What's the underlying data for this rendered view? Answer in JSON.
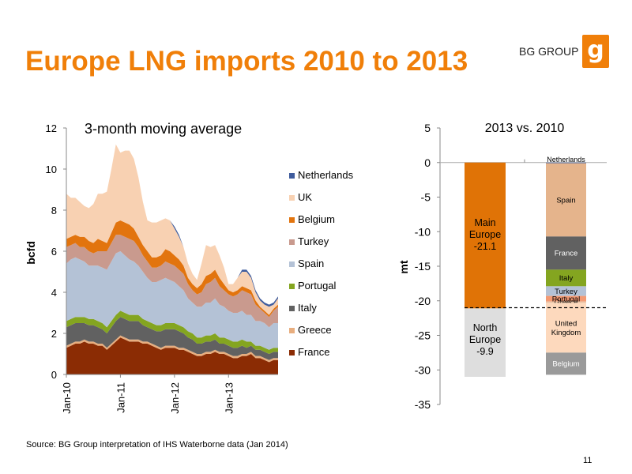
{
  "title": "Europe LNG imports 2010 to 2013",
  "logo": {
    "text": "BG GROUP",
    "mark": "g"
  },
  "source": "Source: BG Group interpretation of IHS Waterborne  data (Jan 2014)",
  "page_number": "11",
  "colors": {
    "accent": "#f07f09",
    "France": "#8b2c04",
    "Greece": "#e8ae7f",
    "Italy": "#616161",
    "Portugal": "#84a520",
    "Spain": "#b4c2d6",
    "Turkey": "#c99a8e",
    "Belgium": "#e2740e",
    "UK": "#f8d1b2",
    "Netherlands": "#3f5c9d",
    "main_europe": "#e07306",
    "north_europe": "#dedede"
  },
  "chart_data": [
    {
      "type": "area",
      "title": "3-month moving average",
      "ylabel": "bcfd",
      "xlabel": "",
      "ylim": [
        0,
        12
      ],
      "yticks": [
        "0",
        "2",
        "4",
        "6",
        "8",
        "10",
        "12"
      ],
      "xticks": [
        "Jan-10",
        "Jan-11",
        "Jan-12",
        "Jan-13"
      ],
      "x": [
        "Jan-10",
        "Feb-10",
        "Mar-10",
        "Apr-10",
        "May-10",
        "Jun-10",
        "Jul-10",
        "Aug-10",
        "Sep-10",
        "Oct-10",
        "Nov-10",
        "Dec-10",
        "Jan-11",
        "Feb-11",
        "Mar-11",
        "Apr-11",
        "May-11",
        "Jun-11",
        "Jul-11",
        "Aug-11",
        "Sep-11",
        "Oct-11",
        "Nov-11",
        "Dec-11",
        "Jan-12",
        "Feb-12",
        "Mar-12",
        "Apr-12",
        "May-12",
        "Jun-12",
        "Jul-12",
        "Aug-12",
        "Sep-12",
        "Oct-12",
        "Nov-12",
        "Dec-12",
        "Jan-13",
        "Feb-13",
        "Mar-13",
        "Apr-13",
        "May-13",
        "Jun-13",
        "Jul-13",
        "Aug-13",
        "Sep-13",
        "Oct-13",
        "Nov-13",
        "Dec-13"
      ],
      "legend_position": "right",
      "series": [
        {
          "name": "France",
          "values": [
            1.3,
            1.4,
            1.5,
            1.5,
            1.6,
            1.5,
            1.5,
            1.4,
            1.4,
            1.2,
            1.4,
            1.6,
            1.8,
            1.7,
            1.6,
            1.6,
            1.6,
            1.5,
            1.5,
            1.4,
            1.3,
            1.2,
            1.3,
            1.3,
            1.3,
            1.2,
            1.2,
            1.1,
            1.0,
            0.9,
            0.9,
            1.0,
            1.0,
            1.1,
            1.0,
            1.0,
            0.9,
            0.8,
            0.8,
            0.9,
            0.9,
            1.0,
            0.8,
            0.8,
            0.7,
            0.6,
            0.7,
            0.7
          ]
        },
        {
          "name": "Greece",
          "values": [
            0.1,
            0.1,
            0.1,
            0.1,
            0.1,
            0.1,
            0.1,
            0.1,
            0.1,
            0.1,
            0.1,
            0.1,
            0.1,
            0.1,
            0.1,
            0.1,
            0.1,
            0.1,
            0.1,
            0.1,
            0.1,
            0.1,
            0.1,
            0.1,
            0.1,
            0.1,
            0.1,
            0.1,
            0.1,
            0.1,
            0.1,
            0.1,
            0.1,
            0.1,
            0.1,
            0.1,
            0.1,
            0.1,
            0.1,
            0.1,
            0.1,
            0.1,
            0.1,
            0.1,
            0.1,
            0.1,
            0.1,
            0.1
          ]
        },
        {
          "name": "Italy",
          "values": [
            0.9,
            0.9,
            0.9,
            0.9,
            0.8,
            0.8,
            0.8,
            0.8,
            0.7,
            0.7,
            0.8,
            0.9,
            0.9,
            0.9,
            0.9,
            0.9,
            0.9,
            0.8,
            0.7,
            0.7,
            0.7,
            0.8,
            0.8,
            0.8,
            0.8,
            0.8,
            0.7,
            0.6,
            0.6,
            0.5,
            0.5,
            0.5,
            0.5,
            0.5,
            0.4,
            0.4,
            0.4,
            0.4,
            0.4,
            0.4,
            0.3,
            0.3,
            0.3,
            0.3,
            0.3,
            0.3,
            0.3,
            0.3
          ]
        },
        {
          "name": "Portugal",
          "values": [
            0.3,
            0.3,
            0.3,
            0.3,
            0.3,
            0.3,
            0.3,
            0.3,
            0.3,
            0.3,
            0.3,
            0.3,
            0.3,
            0.3,
            0.3,
            0.3,
            0.3,
            0.3,
            0.3,
            0.3,
            0.3,
            0.3,
            0.3,
            0.3,
            0.3,
            0.3,
            0.3,
            0.3,
            0.3,
            0.3,
            0.3,
            0.3,
            0.3,
            0.3,
            0.3,
            0.3,
            0.3,
            0.3,
            0.3,
            0.3,
            0.3,
            0.2,
            0.2,
            0.2,
            0.2,
            0.2,
            0.2,
            0.2
          ]
        },
        {
          "name": "Spain",
          "values": [
            2.8,
            2.9,
            2.9,
            2.8,
            2.7,
            2.6,
            2.6,
            2.7,
            2.7,
            2.8,
            2.9,
            3.0,
            2.9,
            2.8,
            2.7,
            2.6,
            2.4,
            2.3,
            2.1,
            2.0,
            2.1,
            2.2,
            2.2,
            2.1,
            2.0,
            1.9,
            1.8,
            1.6,
            1.5,
            1.5,
            1.5,
            1.6,
            1.6,
            1.7,
            1.6,
            1.5,
            1.4,
            1.4,
            1.4,
            1.4,
            1.3,
            1.3,
            1.2,
            1.2,
            1.2,
            1.1,
            1.2,
            1.2
          ]
        },
        {
          "name": "Turkey",
          "values": [
            0.8,
            0.7,
            0.7,
            0.6,
            0.7,
            0.7,
            0.6,
            0.7,
            0.8,
            0.9,
            0.9,
            0.9,
            0.8,
            0.9,
            1.0,
            1.0,
            0.9,
            0.8,
            0.8,
            0.7,
            0.7,
            0.7,
            0.8,
            0.8,
            0.8,
            0.8,
            0.8,
            0.7,
            0.6,
            0.6,
            0.7,
            0.9,
            1.0,
            1.0,
            0.9,
            0.8,
            0.8,
            0.8,
            0.9,
            1.0,
            1.1,
            1.0,
            0.8,
            0.6,
            0.5,
            0.5,
            0.6,
            0.8
          ]
        },
        {
          "name": "Belgium",
          "values": [
            0.4,
            0.4,
            0.4,
            0.5,
            0.5,
            0.5,
            0.5,
            0.6,
            0.5,
            0.4,
            0.5,
            0.6,
            0.7,
            0.7,
            0.7,
            0.6,
            0.5,
            0.5,
            0.5,
            0.5,
            0.5,
            0.5,
            0.6,
            0.6,
            0.5,
            0.5,
            0.4,
            0.3,
            0.3,
            0.3,
            0.4,
            0.4,
            0.4,
            0.4,
            0.4,
            0.3,
            0.2,
            0.2,
            0.2,
            0.2,
            0.2,
            0.2,
            0.2,
            0.1,
            0.1,
            0.1,
            0.1,
            0.1
          ]
        },
        {
          "name": "UK",
          "values": [
            2.2,
            1.9,
            1.8,
            1.7,
            1.5,
            1.6,
            1.9,
            2.2,
            2.3,
            2.5,
            3.1,
            3.8,
            3.3,
            3.5,
            3.6,
            3.4,
            2.9,
            2.1,
            1.5,
            1.7,
            1.7,
            1.7,
            1.5,
            1.5,
            1.3,
            1.1,
            0.9,
            0.7,
            0.5,
            0.4,
            1.0,
            1.5,
            1.3,
            1.2,
            1.1,
            0.8,
            0.3,
            0.4,
            0.6,
            0.7,
            0.8,
            0.6,
            0.4,
            0.3,
            0.3,
            0.4,
            0.2,
            0.3
          ]
        },
        {
          "name": "Netherlands",
          "values": [
            0,
            0,
            0,
            0,
            0,
            0,
            0,
            0,
            0,
            0,
            0,
            0,
            0,
            0,
            0,
            0,
            0,
            0,
            0,
            0,
            0,
            0,
            0,
            0,
            0.1,
            0.1,
            0,
            0,
            0,
            0,
            0,
            0,
            0,
            0,
            0,
            0,
            0,
            0,
            0,
            0.1,
            0.1,
            0.1,
            0.1,
            0.1,
            0.1,
            0.1,
            0.1,
            0.1
          ]
        }
      ]
    },
    {
      "type": "bar",
      "title": "2013 vs. 2010",
      "ylabel": "mt",
      "ylim": [
        -35,
        5
      ],
      "yticks": [
        "5",
        "0",
        "-5",
        "-10",
        "-15",
        "-20",
        "-25",
        "-30",
        "-35"
      ],
      "bars": [
        {
          "label_lines": [
            "Main",
            "Europe",
            "-21.1"
          ],
          "segments": [
            {
              "name": "Main Europe",
              "value": -21.1
            }
          ]
        },
        {
          "label_lines": [
            "North",
            "Europe",
            "-9.9"
          ],
          "segments": [
            {
              "name": "North Europe",
              "value": -9.9
            }
          ]
        },
        {
          "segments": [
            {
              "name": "Netherlands",
              "value": -0.1
            },
            {
              "name": "Spain",
              "value": -10.6
            },
            {
              "name": "France",
              "value": -4.8
            },
            {
              "name": "Italy",
              "value": -2.4
            },
            {
              "name": "Turkey",
              "value": -1.4
            },
            {
              "name": "Portugal",
              "value": -0.8
            },
            {
              "name": "Greece",
              "value": -0.2
            },
            {
              "name": "United Kingdom",
              "value": -7.2
            },
            {
              "name": "Belgium",
              "value": -3.2
            }
          ]
        }
      ],
      "reference_line": -21
    }
  ]
}
